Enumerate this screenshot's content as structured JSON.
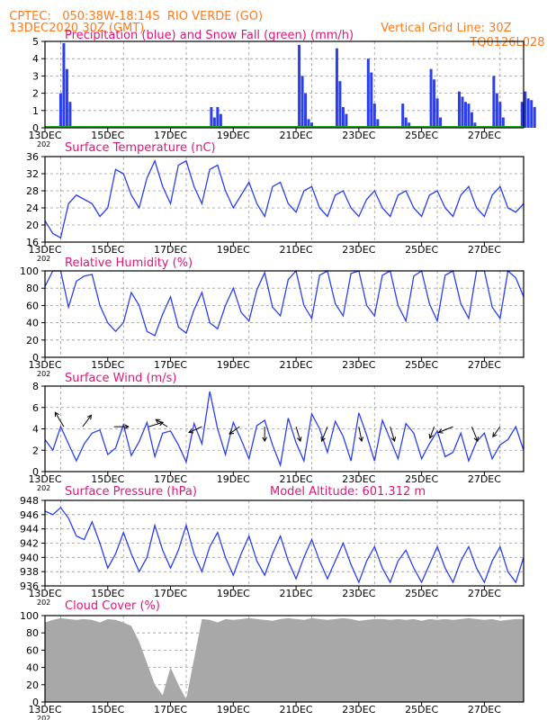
{
  "header": {
    "line1": "CPTEC:   050:38W-18:14S  RIO VERDE (GO)",
    "line2": "13DEC2020 30Z (GMT)",
    "grid_note": "Vertical Grid Line: 30Z",
    "code": "TQ0126L028"
  },
  "colors": {
    "header": "#ff7a1a",
    "title": "#e0157a",
    "line": "#2b3ff0",
    "snow": "#1aaa1a",
    "cloud": "#a8a8a8",
    "arrow": "#000000"
  },
  "x_ticks": [
    "13DEC",
    "15DEC",
    "17DEC",
    "19DEC",
    "21DEC",
    "23DEC",
    "25DEC",
    "27DEC"
  ],
  "x_stub": "202",
  "model_altitude": "Model Altitude: 601.312 m",
  "chart_data": [
    {
      "type": "bar",
      "title": "Precipitation (blue) and Snow Fall (green) (mm/h)",
      "ylim": [
        0,
        5
      ],
      "yticks": [
        0,
        1,
        2,
        3,
        4,
        5
      ],
      "x_unit": "days since 13DEC 00Z",
      "series": [
        {
          "name": "Precipitation",
          "x": [
            0.5,
            0.6,
            0.7,
            0.8,
            4.3,
            5.3,
            5.4,
            5.5,
            5.6,
            6.5,
            8.1,
            8.2,
            8.3,
            8.4,
            8.5,
            9.3,
            9.4,
            9.5,
            9.6,
            10.3,
            10.4,
            10.5,
            10.6,
            11.4,
            11.5,
            11.6,
            11.7,
            12.3,
            12.4,
            12.5,
            12.6,
            13.2,
            13.3,
            13.4,
            13.5,
            13.6,
            13.7,
            14.3,
            14.4,
            14.5,
            14.6,
            15.2,
            15.3,
            15.4,
            15.5,
            15.6
          ],
          "values": [
            2.0,
            4.9,
            3.4,
            1.5,
            0.1,
            1.2,
            0.6,
            1.2,
            0.8,
            0.1,
            4.8,
            3.0,
            2.0,
            0.5,
            0.3,
            4.6,
            2.7,
            1.2,
            0.8,
            4.0,
            3.2,
            1.4,
            0.5,
            1.4,
            0.6,
            0.3,
            0.1,
            3.4,
            2.8,
            1.7,
            0.6,
            2.1,
            1.8,
            1.5,
            1.4,
            0.9,
            0.3,
            3.0,
            2.0,
            1.5,
            0.6,
            1.5,
            2.1,
            1.7,
            1.6,
            1.2
          ]
        },
        {
          "name": "Snow Fall",
          "values": [
            0
          ]
        }
      ]
    },
    {
      "type": "line",
      "title": "Surface Temperature (nC)",
      "ylim": [
        16,
        36
      ],
      "yticks": [
        16,
        20,
        24,
        28,
        32,
        36
      ],
      "x_unit": "days since 13DEC 00Z",
      "series": [
        {
          "name": "Temperature",
          "x": [
            0,
            0.25,
            0.5,
            0.75,
            1.0,
            1.25,
            1.5,
            1.75,
            2.0,
            2.25,
            2.5,
            2.75,
            3.0,
            3.25,
            3.5,
            3.75,
            4.0,
            4.25,
            4.5,
            4.75,
            5.0,
            5.25,
            5.5,
            5.75,
            6.0,
            6.25,
            6.5,
            6.75,
            7.0,
            7.25,
            7.5,
            7.75,
            8.0,
            8.25,
            8.5,
            8.75,
            9.0,
            9.25,
            9.5,
            9.75,
            10.0,
            10.25,
            10.5,
            10.75,
            11.0,
            11.25,
            11.5,
            11.75,
            12.0,
            12.25,
            12.5,
            12.75,
            13.0,
            13.25,
            13.5,
            13.75,
            14.0,
            14.25,
            14.5,
            14.75,
            15.0,
            15.25
          ],
          "values": [
            21,
            18,
            17,
            25,
            27,
            26,
            25,
            22,
            24,
            33,
            32,
            27,
            24,
            31,
            35,
            29,
            25,
            34,
            35,
            29,
            25,
            33,
            34,
            28,
            24,
            27,
            30,
            25,
            22,
            29,
            30,
            25,
            23,
            28,
            29,
            24,
            22,
            27,
            28,
            24,
            22,
            26,
            28,
            24,
            22,
            27,
            28,
            24,
            22,
            27,
            28,
            24,
            22,
            27,
            29,
            24,
            22,
            27,
            29,
            24,
            23,
            25
          ]
        }
      ]
    },
    {
      "type": "line",
      "title": "Relative Humidity (%)",
      "ylim": [
        0,
        100
      ],
      "yticks": [
        0,
        20,
        40,
        60,
        80,
        100
      ],
      "x_unit": "days since 13DEC 00Z",
      "series": [
        {
          "name": "Relative Humidity",
          "x": [
            0,
            0.25,
            0.5,
            0.75,
            1.0,
            1.25,
            1.5,
            1.75,
            2.0,
            2.25,
            2.5,
            2.75,
            3.0,
            3.25,
            3.5,
            3.75,
            4.0,
            4.25,
            4.5,
            4.75,
            5.0,
            5.25,
            5.5,
            5.75,
            6.0,
            6.25,
            6.5,
            6.75,
            7.0,
            7.25,
            7.5,
            7.75,
            8.0,
            8.25,
            8.5,
            8.75,
            9.0,
            9.25,
            9.5,
            9.75,
            10.0,
            10.25,
            10.5,
            10.75,
            11.0,
            11.25,
            11.5,
            11.75,
            12.0,
            12.25,
            12.5,
            12.75,
            13.0,
            13.25,
            13.5,
            13.75,
            14.0,
            14.25,
            14.5,
            14.75,
            15.0,
            15.25
          ],
          "values": [
            82,
            100,
            100,
            58,
            88,
            94,
            96,
            60,
            40,
            30,
            40,
            75,
            60,
            30,
            25,
            50,
            70,
            35,
            28,
            55,
            75,
            40,
            33,
            60,
            80,
            52,
            42,
            78,
            98,
            58,
            48,
            90,
            100,
            60,
            45,
            95,
            100,
            62,
            48,
            97,
            100,
            60,
            48,
            95,
            100,
            60,
            42,
            94,
            100,
            62,
            42,
            95,
            100,
            62,
            45,
            100,
            100,
            58,
            45,
            100,
            92,
            70
          ]
        }
      ]
    },
    {
      "type": "line",
      "title": "Surface Wind (m/s)",
      "ylim": [
        0,
        8
      ],
      "yticks": [
        0,
        2,
        4,
        6,
        8
      ],
      "x_unit": "days since 13DEC 00Z",
      "series": [
        {
          "name": "Wind speed",
          "x": [
            0,
            0.25,
            0.5,
            0.75,
            1.0,
            1.25,
            1.5,
            1.75,
            2.0,
            2.25,
            2.5,
            2.75,
            3.0,
            3.25,
            3.5,
            3.75,
            4.0,
            4.25,
            4.5,
            4.75,
            5.0,
            5.25,
            5.5,
            5.75,
            6.0,
            6.25,
            6.5,
            6.75,
            7.0,
            7.25,
            7.5,
            7.75,
            8.0,
            8.25,
            8.5,
            8.75,
            9.0,
            9.25,
            9.5,
            9.75,
            10.0,
            10.25,
            10.5,
            10.75,
            11.0,
            11.25,
            11.5,
            11.75,
            12.0,
            12.25,
            12.5,
            12.75,
            13.0,
            13.25,
            13.5,
            13.75,
            14.0,
            14.25,
            14.5,
            14.75,
            15.0,
            15.25
          ],
          "values": [
            3.0,
            2.0,
            4.2,
            2.6,
            1.0,
            2.6,
            3.6,
            3.9,
            1.6,
            2.2,
            4.4,
            1.5,
            2.8,
            4.6,
            1.4,
            3.6,
            3.8,
            2.5,
            0.9,
            4.5,
            2.6,
            7.5,
            4.0,
            1.6,
            4.6,
            3.0,
            1.2,
            4.3,
            4.8,
            2.5,
            0.6,
            5.0,
            2.7,
            1.0,
            5.4,
            4.0,
            1.8,
            4.7,
            3.3,
            1.0,
            5.5,
            3.4,
            1.0,
            4.8,
            3.0,
            1.2,
            4.5,
            3.6,
            1.2,
            2.6,
            3.8,
            1.4,
            1.8,
            3.6,
            1.0,
            2.8,
            3.6,
            1.2,
            2.5,
            3.0,
            4.2,
            2.0
          ]
        }
      ]
    },
    {
      "type": "line",
      "title": "Surface Pressure (hPa)",
      "ylim": [
        936,
        948
      ],
      "yticks": [
        936,
        938,
        940,
        942,
        944,
        946,
        948
      ],
      "x_unit": "days since 13DEC 00Z",
      "series": [
        {
          "name": "Pressure",
          "x": [
            0,
            0.25,
            0.5,
            0.75,
            1.0,
            1.25,
            1.5,
            1.75,
            2.0,
            2.25,
            2.5,
            2.75,
            3.0,
            3.25,
            3.5,
            3.75,
            4.0,
            4.25,
            4.5,
            4.75,
            5.0,
            5.25,
            5.5,
            5.75,
            6.0,
            6.25,
            6.5,
            6.75,
            7.0,
            7.25,
            7.5,
            7.75,
            8.0,
            8.25,
            8.5,
            8.75,
            9.0,
            9.25,
            9.5,
            9.75,
            10.0,
            10.25,
            10.5,
            10.75,
            11.0,
            11.25,
            11.5,
            11.75,
            12.0,
            12.25,
            12.5,
            12.75,
            13.0,
            13.25,
            13.5,
            13.75,
            14.0,
            14.25,
            14.5,
            14.75,
            15.0,
            15.25
          ],
          "values": [
            946.5,
            946.0,
            947.0,
            945.5,
            943.0,
            942.5,
            945.0,
            942.0,
            938.5,
            940.5,
            943.5,
            940.5,
            938.0,
            940.0,
            944.5,
            941.0,
            938.5,
            941.0,
            944.5,
            940.5,
            938.0,
            941.5,
            943.5,
            940.0,
            937.5,
            940.5,
            943.0,
            939.5,
            937.5,
            940.5,
            943.0,
            939.5,
            937.0,
            940.0,
            942.5,
            939.5,
            937.0,
            939.5,
            942.0,
            939.0,
            936.5,
            939.5,
            941.5,
            938.5,
            936.5,
            939.5,
            941.0,
            938.5,
            936.5,
            939.0,
            941.5,
            938.5,
            936.5,
            939.5,
            941.5,
            938.5,
            936.5,
            939.5,
            941.5,
            938.0,
            936.5,
            940.0
          ]
        }
      ]
    },
    {
      "type": "area",
      "title": "Cloud Cover (%)",
      "ylim": [
        0,
        100
      ],
      "yticks": [
        0,
        20,
        40,
        60,
        80,
        100
      ],
      "x_unit": "days since 13DEC 00Z",
      "series": [
        {
          "name": "Cloud Cover",
          "x": [
            0,
            0.25,
            0.5,
            0.75,
            1.0,
            1.25,
            1.5,
            1.75,
            2.0,
            2.25,
            2.5,
            2.75,
            3.0,
            3.25,
            3.5,
            3.75,
            4.0,
            4.25,
            4.5,
            4.75,
            5.0,
            5.25,
            5.5,
            5.75,
            6.0,
            6.25,
            6.5,
            6.75,
            7.0,
            7.25,
            7.5,
            7.75,
            8.0,
            8.25,
            8.5,
            8.75,
            9.0,
            9.25,
            9.5,
            9.75,
            10.0,
            10.25,
            10.5,
            10.75,
            11.0,
            11.25,
            11.5,
            11.75,
            12.0,
            12.25,
            12.5,
            12.75,
            13.0,
            13.25,
            13.5,
            13.75,
            14.0,
            14.25,
            14.5,
            14.75,
            15.0,
            15.25
          ],
          "values": [
            92,
            95,
            97,
            96,
            95,
            96,
            95,
            92,
            96,
            95,
            92,
            88,
            70,
            45,
            20,
            8,
            40,
            20,
            3,
            50,
            96,
            95,
            92,
            96,
            95,
            96,
            97,
            96,
            95,
            94,
            96,
            97,
            96,
            95,
            97,
            96,
            95,
            96,
            97,
            96,
            94,
            95,
            96,
            96,
            95,
            96,
            95,
            96,
            94,
            96,
            95,
            96,
            95,
            96,
            97,
            96,
            95,
            96,
            94,
            95,
            96,
            96
          ]
        }
      ]
    }
  ]
}
